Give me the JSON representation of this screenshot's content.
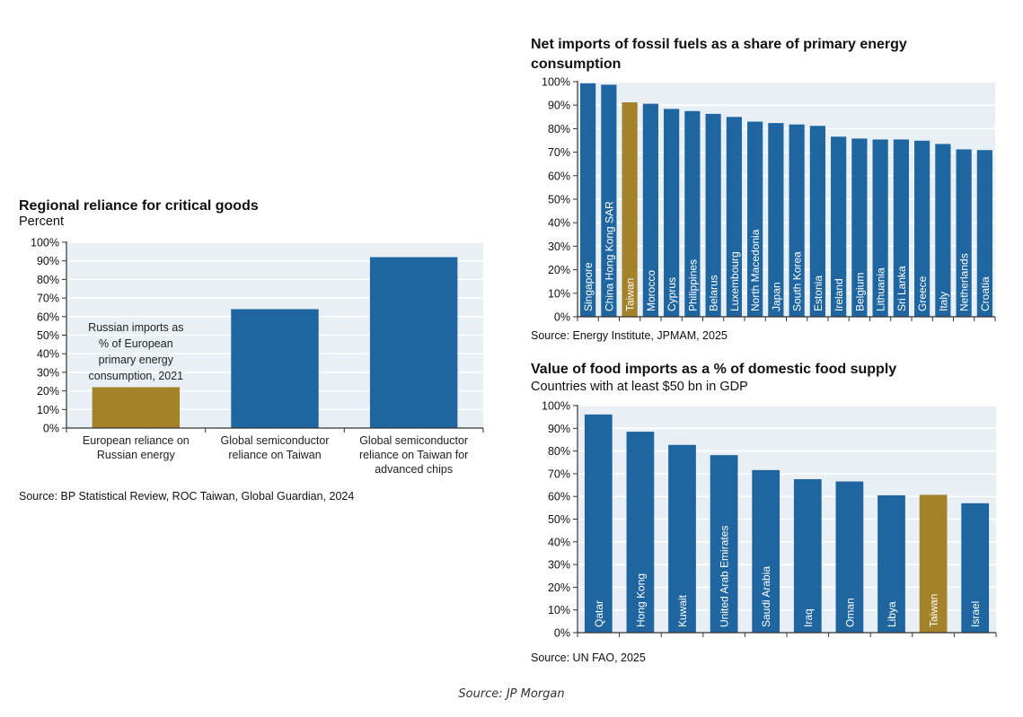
{
  "colors": {
    "bar": "#1f66a0",
    "highlight": "#a3822a",
    "plot_bg": "#e8f0f5",
    "grid": "#ffffff",
    "axis": "#333333"
  },
  "footer": {
    "source": "Source: JP Morgan"
  },
  "chart_data": [
    {
      "id": "critical-goods",
      "type": "bar",
      "title": "Regional reliance for critical goods",
      "subtitle": "Percent",
      "xlabel": "",
      "ylabel": "Percent",
      "ylim": [
        0,
        100
      ],
      "yticks": [
        "0%",
        "10%",
        "20%",
        "30%",
        "40%",
        "50%",
        "60%",
        "70%",
        "80%",
        "90%",
        "100%"
      ],
      "grid": true,
      "categories": [
        [
          "European reliance on",
          "Russian energy"
        ],
        [
          "Global semiconductor",
          "reliance on Taiwan"
        ],
        [
          "Global semiconductor",
          "reliance on Taiwan for",
          "advanced chips"
        ]
      ],
      "values": [
        22,
        64,
        92
      ],
      "highlight": [
        true,
        false,
        false
      ],
      "annotation": [
        "Russian imports as",
        "% of European",
        "primary energy",
        "consumption, 2021"
      ],
      "source": "Source: BP Statistical Review, ROC Taiwan, Global Guardian, 2024"
    },
    {
      "id": "fossil-fuel-imports",
      "type": "bar",
      "title": [
        "Net imports of fossil fuels as a share of primary energy",
        "consumption"
      ],
      "xlabel": "",
      "ylabel": "",
      "ylim": [
        0,
        100
      ],
      "yticks": [
        "0%",
        "10%",
        "20%",
        "30%",
        "40%",
        "50%",
        "60%",
        "70%",
        "80%",
        "90%",
        "100%"
      ],
      "grid": true,
      "categories": [
        "Singapore",
        "China Hong Kong SAR",
        "Taiwan",
        "Morocco",
        "Cyprus",
        "Philippines",
        "Belarus",
        "Luxembourg",
        "North Macedonia",
        "Japan",
        "South Korea",
        "Estonia",
        "Ireland",
        "Belgium",
        "Lithuania",
        "Sri Lanka",
        "Greece",
        "Italy",
        "Netherlands",
        "Croatia"
      ],
      "values": [
        99.3,
        98.7,
        91.2,
        90.6,
        88.4,
        87.5,
        86.3,
        85.0,
        83.0,
        82.4,
        81.8,
        81.2,
        76.6,
        75.8,
        75.4,
        75.4,
        74.9,
        73.5,
        71.2,
        70.9
      ],
      "highlight_category": "Taiwan",
      "source": "Source: Energy Institute, JPMAM, 2025"
    },
    {
      "id": "food-imports",
      "type": "bar",
      "title": "Value of food imports as a % of domestic food supply",
      "subtitle": "Countries with at least $50 bn in GDP",
      "xlabel": "",
      "ylabel": "",
      "ylim": [
        0,
        100
      ],
      "yticks": [
        "0%",
        "10%",
        "20%",
        "30%",
        "40%",
        "50%",
        "60%",
        "70%",
        "80%",
        "90%",
        "100%"
      ],
      "grid": true,
      "categories": [
        "Qatar",
        "Hong Kong",
        "Kuwait",
        "United Arab Emirates",
        "Saudi Arabia",
        "Iraq",
        "Oman",
        "Libya",
        "Taiwan",
        "Israel"
      ],
      "values": [
        96.1,
        88.5,
        82.7,
        78.2,
        71.6,
        67.6,
        66.6,
        60.5,
        60.7,
        57.0
      ],
      "highlight_category": "Taiwan",
      "source": "Source: UN FAO, 2025"
    }
  ]
}
